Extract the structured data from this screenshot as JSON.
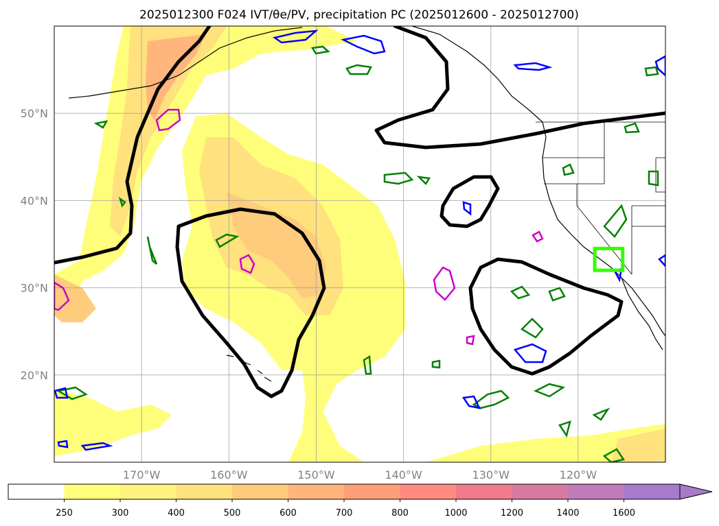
{
  "title": "2025012300 F024 IVT/θe/PV, precipitation PC (2025012600 - 2025012700)",
  "map": {
    "lon_range": [
      -180,
      -110
    ],
    "lat_range": [
      10,
      60
    ],
    "lon_ticks": [
      {
        "value": -170,
        "label": "170°W"
      },
      {
        "value": -160,
        "label": "160°W"
      },
      {
        "value": -150,
        "label": "150°W"
      },
      {
        "value": -140,
        "label": "140°W"
      },
      {
        "value": -130,
        "label": "130°W"
      },
      {
        "value": -120,
        "label": "120°W"
      }
    ],
    "lat_ticks": [
      {
        "value": 20,
        "label": "20°N"
      },
      {
        "value": 30,
        "label": "30°N"
      },
      {
        "value": 40,
        "label": "40°N"
      },
      {
        "value": 50,
        "label": "50°N"
      }
    ],
    "grid": true,
    "highlight_box": {
      "lon": [
        -118.1,
        -114.9
      ],
      "lat": [
        32.0,
        34.5
      ],
      "color": "#33ff00"
    }
  },
  "colorbar": {
    "levels": [
      "250",
      "300",
      "400",
      "500",
      "600",
      "700",
      "800",
      "1000",
      "1200",
      "1400",
      "1600"
    ],
    "colors": [
      "#ffffff",
      "#fffe7a",
      "#fff27e",
      "#ffe17e",
      "#ffcb7d",
      "#ffb57c",
      "#ff9f7a",
      "#ff8a80",
      "#f07b8a",
      "#d87aa1",
      "#bf7ab9",
      "#a77acb"
    ],
    "extend": "max"
  },
  "contour_colors": {
    "theta_e": "#000000",
    "pv_green": "#008000",
    "pv_blue": "#0000ff",
    "pv_magenta": "#cc00cc"
  }
}
